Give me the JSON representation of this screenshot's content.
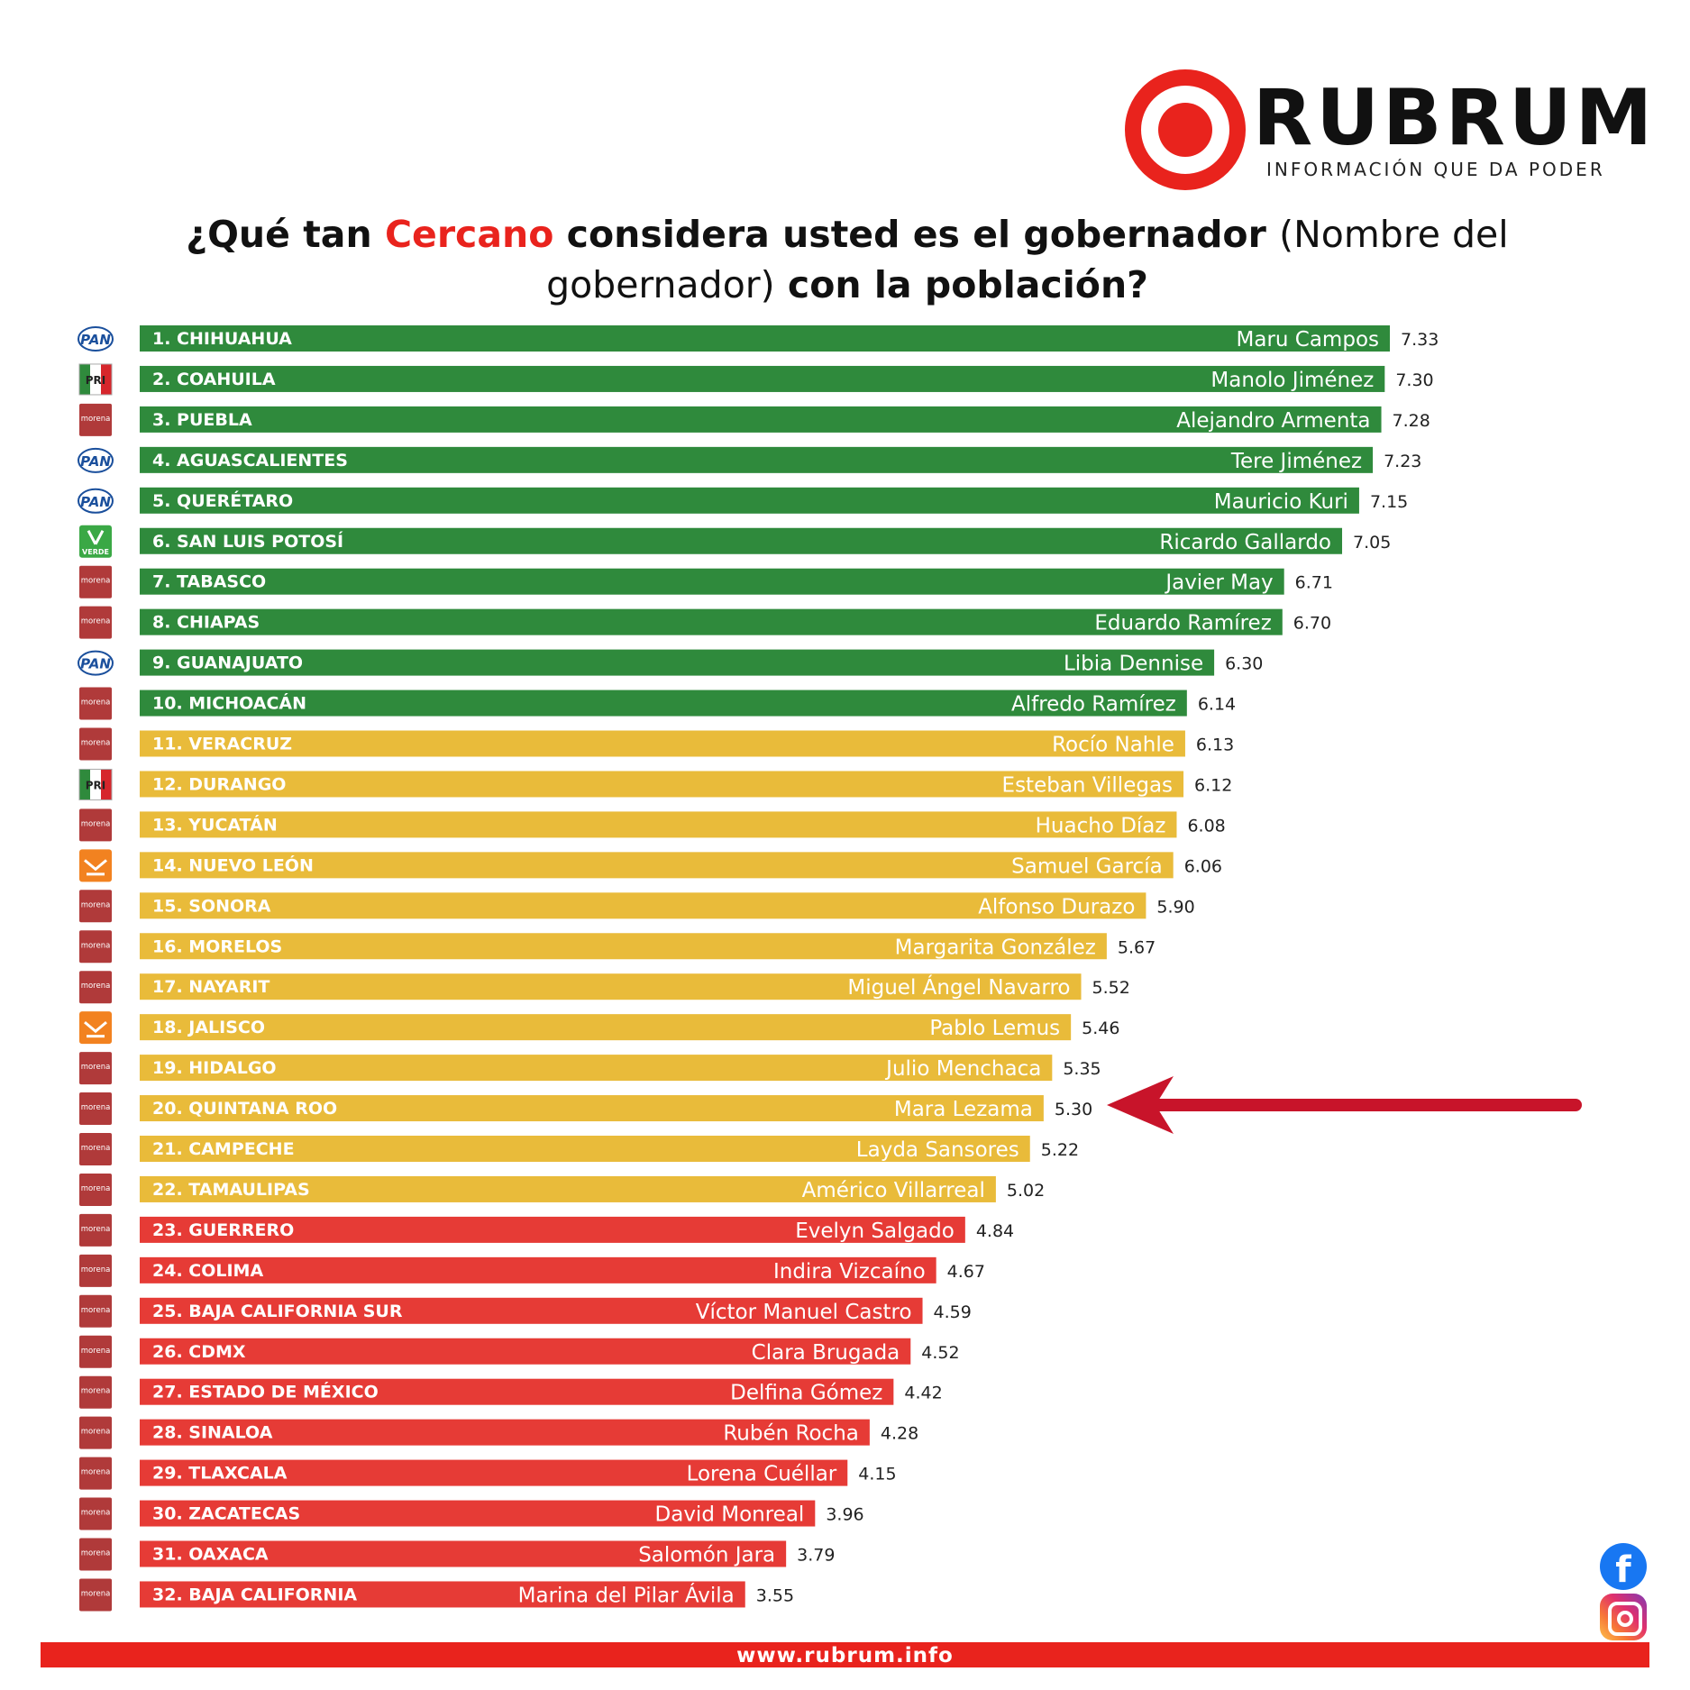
{
  "brand": {
    "name": "RUBRUM",
    "tagline": "INFORMACIÓN QUE DA PODER"
  },
  "question": {
    "part1": "¿Qué tan ",
    "accent": "Cercano",
    "part2": " considera usted es el gobernador ",
    "part3": "(Nombre del gobernador)",
    "part4": " con la población?"
  },
  "colors": {
    "green": "#2f8a3c",
    "yellow": "#e9bb3a",
    "red": "#e63b36",
    "brand_red": "#e9231d",
    "arrow": "#c8142a"
  },
  "party_logos": {
    "PAN": "PAN",
    "PRI": "PRI",
    "morena": "morena",
    "VERDE": "VERDE",
    "MC": "MC"
  },
  "footer": {
    "url": "www.rubrum.info"
  },
  "socials": {
    "facebook": "f"
  },
  "chart_data": {
    "type": "bar",
    "orientation": "horizontal",
    "categories": [
      "1. CHIHUAHUA",
      "2. COAHUILA",
      "3. PUEBLA",
      "4. AGUASCALIENTES",
      "5. QUERÉTARO",
      "6. SAN LUIS POTOSÍ",
      "7. TABASCO",
      "8. CHIAPAS",
      "9. GUANAJUATO",
      "10. MICHOACÁN",
      "11. VERACRUZ",
      "12. DURANGO",
      "13. YUCATÁN",
      "14. NUEVO LEÓN",
      "15. SONORA",
      "16. MORELOS",
      "17. NAYARIT",
      "18. JALISCO",
      "19. HIDALGO",
      "20. QUINTANA ROO",
      "21. CAMPECHE",
      "22. TAMAULIPAS",
      "23. GUERRERO",
      "24. COLIMA",
      "25. BAJA CALIFORNIA SUR",
      "26. CDMX",
      "27. ESTADO DE MÉXICO",
      "28. SINALOA",
      "29. TLAXCALA",
      "30. ZACATECAS",
      "31. OAXACA",
      "32. BAJA CALIFORNIA"
    ],
    "governors": [
      "Maru Campos",
      "Manolo Jiménez",
      "Alejandro Armenta",
      "Tere Jiménez",
      "Mauricio Kuri",
      "Ricardo Gallardo",
      "Javier May",
      "Eduardo Ramírez",
      "Libia Dennise",
      "Alfredo Ramírez",
      "Rocío Nahle",
      "Esteban Villegas",
      "Huacho Díaz",
      "Samuel García",
      "Alfonso Durazo",
      "Margarita González",
      "Miguel Ángel Navarro",
      "Pablo Lemus",
      "Julio Menchaca",
      "Mara Lezama",
      "Layda Sansores",
      "Américo Villarreal",
      "Evelyn Salgado",
      "Indira Vizcaíno",
      "Víctor Manuel Castro",
      "Clara Brugada",
      "Delfina Gómez",
      "Rubén Rocha",
      "Lorena Cuéllar",
      "David Monreal",
      "Salomón Jara",
      "Marina del Pilar Ávila"
    ],
    "parties": [
      "PAN",
      "PRI",
      "morena",
      "PAN",
      "PAN",
      "VERDE",
      "morena",
      "morena",
      "PAN",
      "morena",
      "morena",
      "PRI",
      "morena",
      "MC",
      "morena",
      "morena",
      "morena",
      "MC",
      "morena",
      "morena",
      "morena",
      "morena",
      "morena",
      "morena",
      "morena",
      "morena",
      "morena",
      "morena",
      "morena",
      "morena",
      "morena",
      "morena"
    ],
    "values": [
      7.33,
      7.3,
      7.28,
      7.23,
      7.15,
      7.05,
      6.71,
      6.7,
      6.3,
      6.14,
      6.13,
      6.12,
      6.08,
      6.06,
      5.9,
      5.67,
      5.52,
      5.46,
      5.35,
      5.3,
      5.22,
      5.02,
      4.84,
      4.67,
      4.59,
      4.52,
      4.42,
      4.28,
      4.15,
      3.96,
      3.79,
      3.55
    ],
    "value_labels": [
      "7.33",
      "7.30",
      "7.28",
      "7.23",
      "7.15",
      "7.05",
      "6.71",
      "6.70",
      "6.30",
      "6.14",
      "6.13",
      "6.12",
      "6.08",
      "6.06",
      "5.90",
      "5.67",
      "5.52",
      "5.46",
      "5.35",
      "5.30",
      "5.22",
      "5.02",
      "4.84",
      "4.67",
      "4.59",
      "4.52",
      "4.42",
      "4.28",
      "4.15",
      "3.96",
      "3.79",
      "3.55"
    ],
    "bands": [
      "green",
      "green",
      "green",
      "green",
      "green",
      "green",
      "green",
      "green",
      "green",
      "green",
      "yellow",
      "yellow",
      "yellow",
      "yellow",
      "yellow",
      "yellow",
      "yellow",
      "yellow",
      "yellow",
      "yellow",
      "yellow",
      "yellow",
      "red",
      "red",
      "red",
      "red",
      "red",
      "red",
      "red",
      "red",
      "red",
      "red"
    ],
    "highlighted_index": 19,
    "title": "¿Qué tan Cercano considera usted es el gobernador (Nombre del gobernador) con la población?"
  }
}
